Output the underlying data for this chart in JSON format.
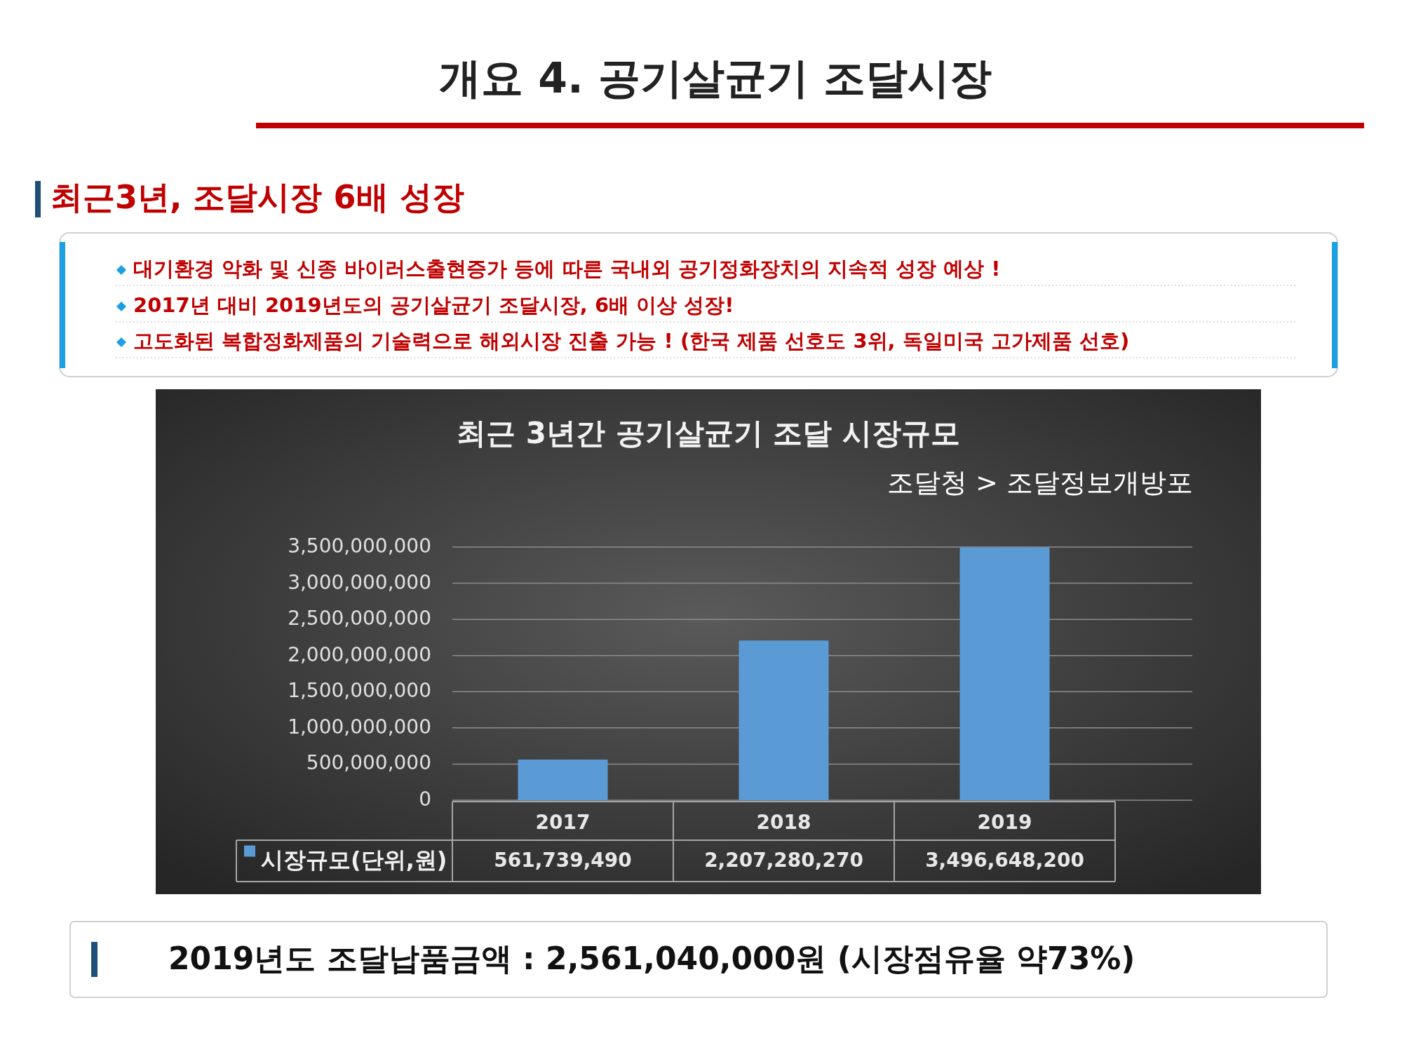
{
  "chart_data": {
    "type": "bar",
    "title": "최근 3년간 공기살균기 조달 시장규모",
    "categories": [
      "2017",
      "2018",
      "2019"
    ],
    "series": [
      {
        "name": "시장규모(단위,원)",
        "color": "#5b9bd5",
        "values": [
          561739490,
          2207280270,
          3496648200
        ],
        "value_labels": [
          "561,739,490",
          "2,207,280,270",
          "3,496,648,200"
        ]
      }
    ],
    "ylim": [
      0,
      3500000000
    ],
    "yticks": [
      0,
      {
        "value": 500000000,
        "label": "500,000,000"
      },
      {
        "value": 1000000000,
        "label": "1,000,000,000"
      },
      {
        "value": 1500000000,
        "label": "1,500,000,000"
      },
      {
        "value": 2000000000,
        "label": "2,000,000,000"
      },
      {
        "value": 2500000000,
        "label": "2,500,000,000"
      },
      {
        "value": 3000000000,
        "label": "3,000,000,000"
      },
      {
        "value": 3500000000,
        "label": "3,500,000,000"
      }
    ],
    "grid": "y",
    "legend": "bottom",
    "annotations": [
      "개요 4. 공기살균기 조달시장",
      "최근3년, 조달시장 6배 성장",
      "대기환경 악화 및 신종 바이러스출현증가 등에 따른 국내외 공기정화장치의 지속적 성장 예상 !",
      "2017년 대비 2019년도의 공기살균기 조달시장, 6배 이상 성장!",
      "고도화된 복합정화제품의 기술력으로 해외시장 진출 가능 ! (한국 제품 선호도 3위, 독일미국 고가제품 선호)",
      "조달청 > 조달정보개방포",
      "2019년도 조달납품금액 : 2,561,040,000원 (시장점유율 약73%)"
    ]
  }
}
